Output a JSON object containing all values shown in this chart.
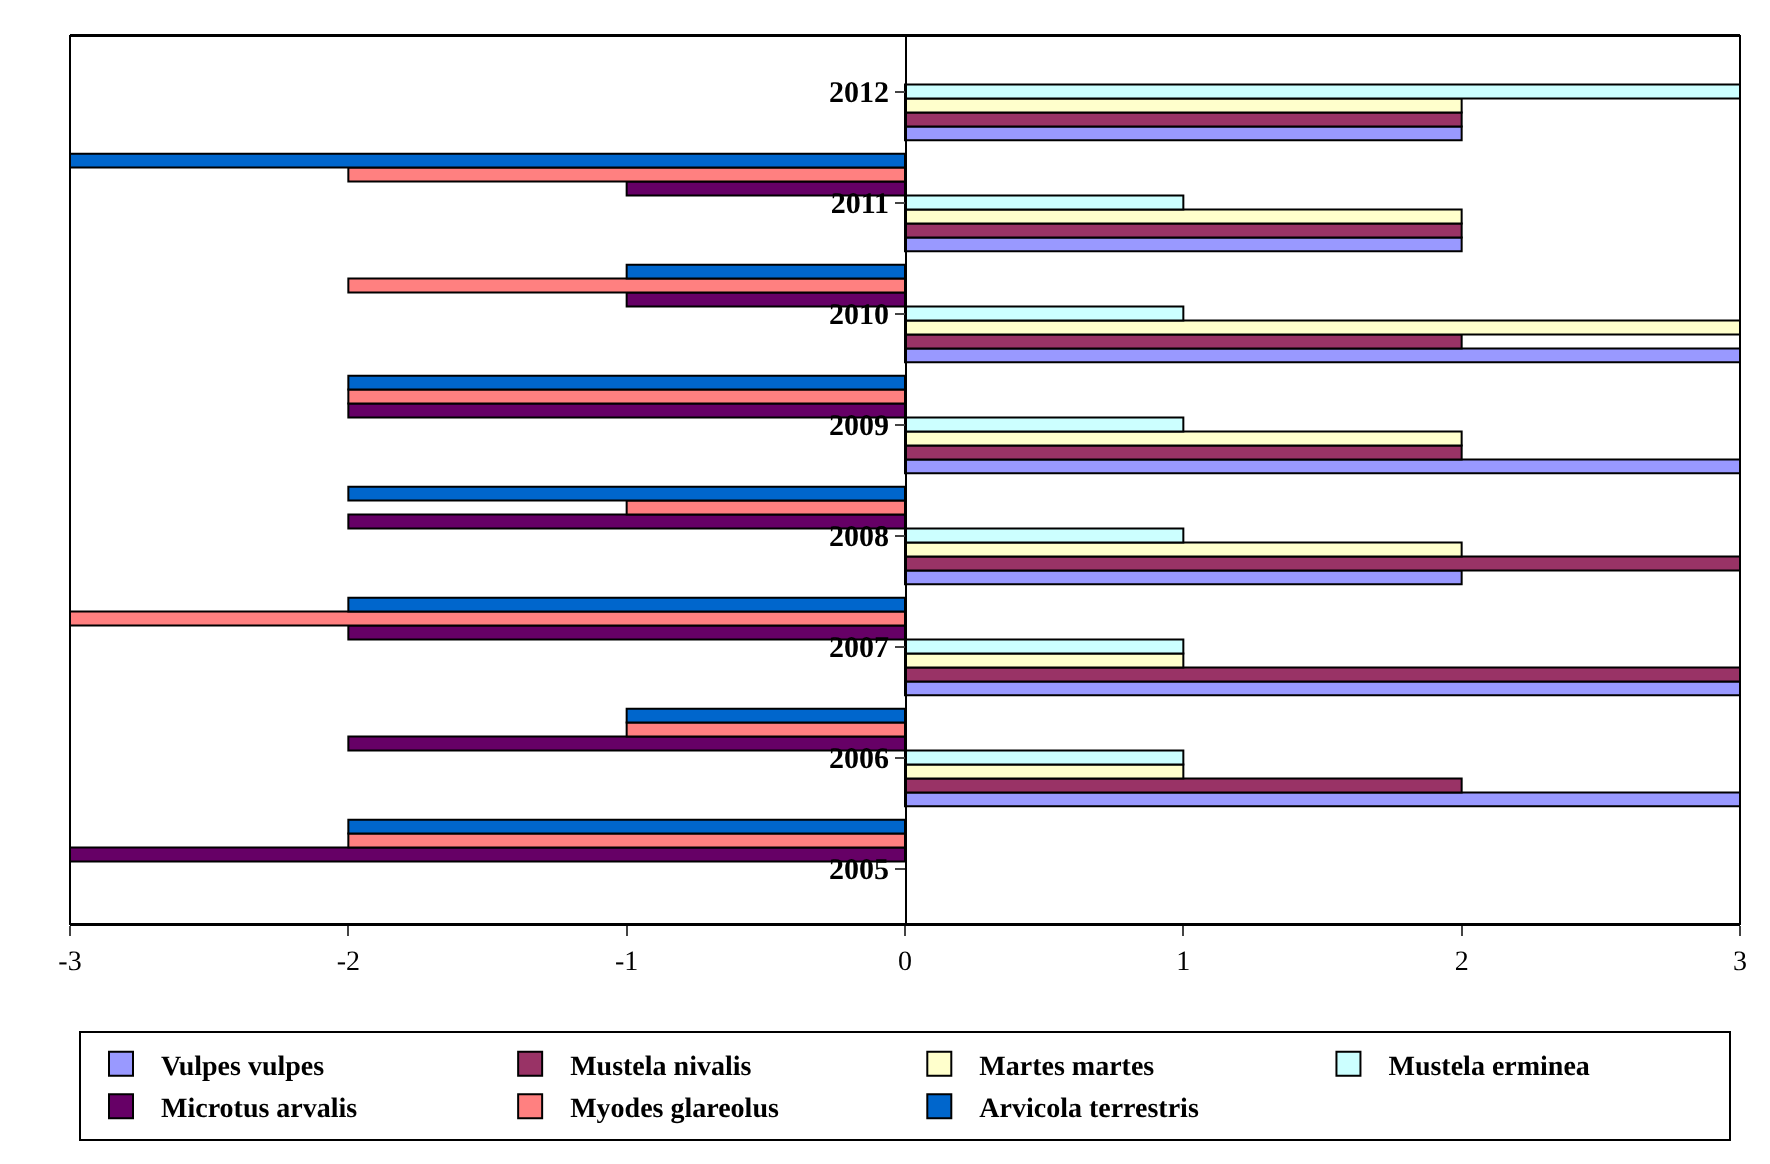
{
  "chart_data": {
    "type": "bar",
    "orientation": "horizontal",
    "categories": [
      "2012",
      "2011",
      "2010",
      "2009",
      "2008",
      "2007",
      "2006",
      "2005"
    ],
    "series": [
      {
        "name": "Vulpes vulpes",
        "color": "#9999ff",
        "values": [
          2,
          2,
          3,
          3,
          2,
          3,
          3,
          null
        ]
      },
      {
        "name": "Mustela nivalis",
        "color": "#993366",
        "values": [
          2,
          2,
          2,
          2,
          3,
          3,
          2,
          null
        ]
      },
      {
        "name": "Martes martes",
        "color": "#ffffcc",
        "values": [
          2,
          2,
          3,
          2,
          2,
          1,
          1,
          null
        ]
      },
      {
        "name": "Mustela erminea",
        "color": "#ccffff",
        "values": [
          3,
          1,
          1,
          1,
          1,
          1,
          1,
          null
        ]
      },
      {
        "name": "Microtus arvalis",
        "color": "#660066",
        "values": [
          null,
          -1,
          -1,
          -2,
          -2,
          -2,
          -2,
          -3
        ]
      },
      {
        "name": "Myodes glareolus",
        "color": "#ff8080",
        "values": [
          null,
          -2,
          -2,
          -2,
          -1,
          -3,
          -1,
          -2
        ]
      },
      {
        "name": "Arvicola terrestris",
        "color": "#0066cc",
        "values": [
          null,
          -3,
          -1,
          -2,
          -2,
          -2,
          -1,
          -2
        ]
      }
    ],
    "xlim": [
      -3,
      3
    ],
    "xticks": [
      -3,
      -2,
      -1,
      0,
      1,
      2,
      3
    ],
    "grid": false,
    "legend": "bottom"
  }
}
